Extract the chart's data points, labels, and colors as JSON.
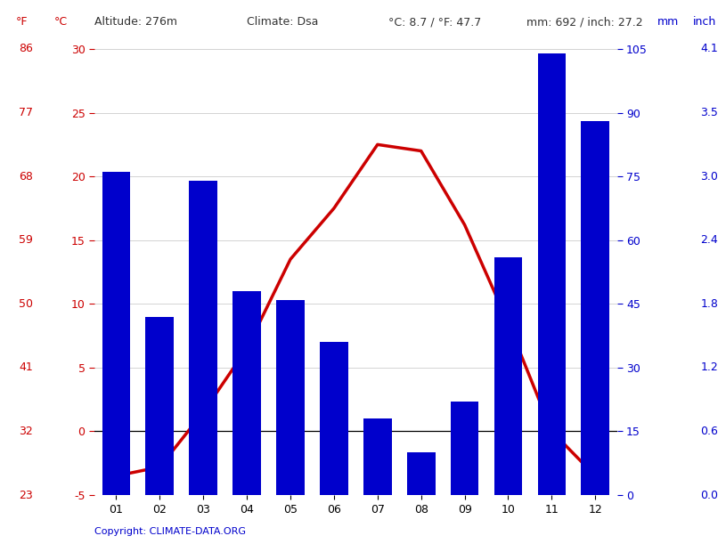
{
  "months": [
    "01",
    "02",
    "03",
    "04",
    "05",
    "06",
    "07",
    "08",
    "09",
    "10",
    "11",
    "12"
  ],
  "precipitation_mm": [
    76,
    42,
    74,
    48,
    46,
    36,
    18,
    10,
    22,
    56,
    104,
    88
  ],
  "temperature_c": [
    -3.5,
    -2.8,
    1.5,
    6.5,
    13.5,
    17.5,
    22.5,
    22.0,
    16.2,
    8.5,
    0.0,
    -3.5
  ],
  "bar_color": "#0000cc",
  "line_color": "#cc0000",
  "temp_ylim": [
    -5,
    30
  ],
  "precip_ylim": [
    0,
    105
  ],
  "temp_yticks": [
    -5,
    0,
    5,
    10,
    15,
    20,
    25,
    30
  ],
  "temp_f_ticks": [
    23,
    32,
    41,
    50,
    59,
    68,
    77,
    86
  ],
  "precip_mm_ticks": [
    0,
    15,
    30,
    45,
    60,
    75,
    90,
    105
  ],
  "precip_inch_ticks": [
    "0.0",
    "0.6",
    "1.2",
    "1.8",
    "2.4",
    "3.0",
    "3.5",
    "4.1"
  ],
  "copyright_text": "Copyright: CLIMATE-DATA.ORG",
  "background_color": "#ffffff",
  "grid_color": "#cccccc",
  "red_color": "#cc0000",
  "blue_color": "#0000cc"
}
